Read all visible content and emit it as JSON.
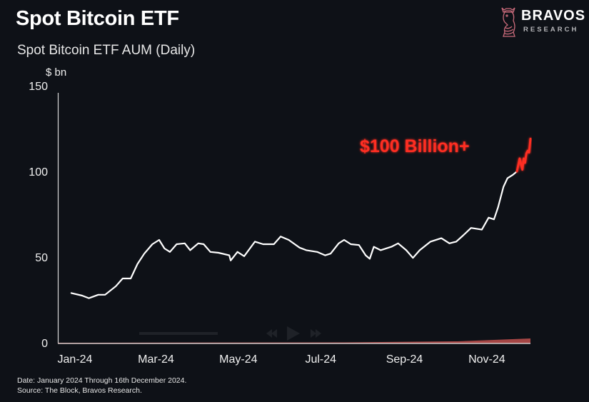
{
  "header": {
    "title": "Spot Bitcoin ETF",
    "brand_name": "BRAVOS",
    "brand_sub": "RESEARCH",
    "brand_icon": "bull-knight-icon"
  },
  "colors": {
    "background": "#0e1117",
    "line": "#ffffff",
    "highlight": "#ff2e24",
    "threshold": "#ff2e24",
    "area": "#c0504d"
  },
  "chart_data": {
    "type": "line",
    "title": "Spot Bitcoin ETF AUM (Daily)",
    "xlabel": "",
    "ylabel": "$ bn",
    "ylim": [
      0,
      150
    ],
    "yticks": [
      0,
      50,
      100,
      150
    ],
    "xlim": [
      "2024-01-01",
      "2024-12-16"
    ],
    "xtick_labels": [
      "Jan-24",
      "Mar-24",
      "May-24",
      "Jul-24",
      "Sep-24",
      "Nov-24"
    ],
    "xtick_dates": [
      "2024-01-01",
      "2024-03-01",
      "2024-05-01",
      "2024-07-01",
      "2024-09-01",
      "2024-11-01"
    ],
    "grid": false,
    "legend": "none",
    "annotation": {
      "text": "$100 Billion+",
      "threshold": 100,
      "style": "dashed-glow"
    },
    "series": [
      {
        "name": "Spot Bitcoin ETF AUM",
        "color": "#ffffff",
        "x": [
          "2024-01-11",
          "2024-01-19",
          "2024-01-24",
          "2024-01-31",
          "2024-02-05",
          "2024-02-13",
          "2024-02-18",
          "2024-02-24",
          "2024-02-29",
          "2024-03-05",
          "2024-03-11",
          "2024-03-16",
          "2024-03-20",
          "2024-03-24",
          "2024-03-29",
          "2024-04-04",
          "2024-04-08",
          "2024-04-14",
          "2024-04-18",
          "2024-04-23",
          "2024-04-29",
          "2024-05-07",
          "2024-05-08",
          "2024-05-13",
          "2024-05-18",
          "2024-05-26",
          "2024-06-01",
          "2024-06-09",
          "2024-06-14",
          "2024-06-20",
          "2024-06-28",
          "2024-07-03",
          "2024-07-11",
          "2024-07-17",
          "2024-07-21",
          "2024-07-27",
          "2024-07-31",
          "2024-08-05",
          "2024-08-11",
          "2024-08-16",
          "2024-08-19",
          "2024-08-22",
          "2024-08-27",
          "2024-09-04",
          "2024-09-09",
          "2024-09-15",
          "2024-09-20",
          "2024-09-25",
          "2024-10-03",
          "2024-10-11",
          "2024-10-17",
          "2024-10-22",
          "2024-10-27",
          "2024-11-02",
          "2024-11-10",
          "2024-11-15",
          "2024-11-19",
          "2024-11-22",
          "2024-11-26",
          "2024-11-29",
          "2024-12-03",
          "2024-12-06"
        ],
        "values": [
          29,
          27.5,
          26,
          28,
          28,
          33,
          37.5,
          37.5,
          46,
          52,
          57.5,
          60,
          55,
          53,
          57.5,
          58,
          54,
          58,
          57.5,
          53,
          52.5,
          51,
          48,
          53,
          50.5,
          59,
          57.5,
          57.5,
          62,
          60,
          55.5,
          54,
          53,
          51,
          52,
          58,
          60,
          57.5,
          57,
          51,
          49,
          56,
          54,
          56,
          58,
          54,
          49.5,
          54,
          59,
          61,
          58,
          59,
          62.5,
          67,
          66,
          73,
          72,
          79,
          91,
          96,
          98,
          100
        ]
      },
      {
        "name": "AUM above $100bn",
        "color": "#ff2e24",
        "x": [
          "2024-12-06",
          "2024-12-08",
          "2024-12-10",
          "2024-12-11",
          "2024-12-12",
          "2024-12-13",
          "2024-12-14",
          "2024-12-15",
          "2024-12-16"
        ],
        "values": [
          100,
          107.5,
          101,
          107.5,
          105,
          110.5,
          112,
          111,
          119
        ]
      }
    ]
  },
  "footnotes": {
    "date": "Date: January 2024 Through 16th December 2024.",
    "source": "Source: The Block, Bravos Research."
  },
  "overlay": {
    "player_icons": [
      "rewind-icon",
      "play-icon",
      "fast-forward-icon"
    ]
  }
}
